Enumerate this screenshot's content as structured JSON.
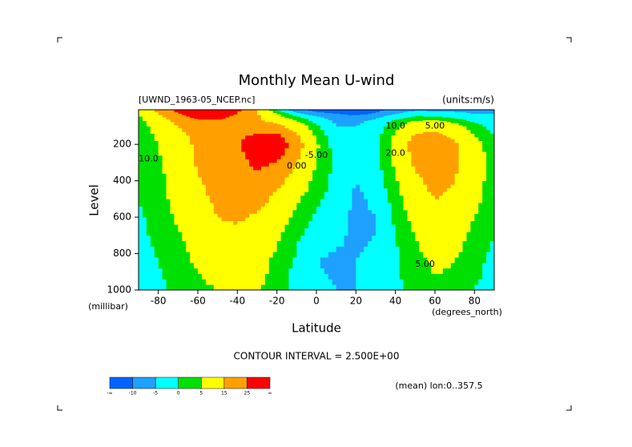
{
  "chart_data": {
    "type": "contour",
    "title": "Monthly Mean U-wind",
    "subtitle": "[UWND_1963-05_NCEP.nc]",
    "units": "(units:m/s)",
    "x_label": "Latitude",
    "x_units": "(degrees_north)",
    "y_label": "Level",
    "y_units": "(millibar)",
    "contour_interval": "CONTOUR INTERVAL = 2.500E+00",
    "footnote": "(mean) lon:0..357.5",
    "x": [
      -90,
      -80,
      -70,
      -60,
      -50,
      -40,
      -30,
      -20,
      -10,
      0,
      10,
      20,
      30,
      40,
      50,
      60,
      70,
      80,
      90
    ],
    "levels": [
      1000,
      850,
      700,
      600,
      500,
      400,
      300,
      200,
      150,
      100,
      70,
      50,
      30,
      10
    ],
    "values": [
      [
        -2,
        -1,
        1,
        3,
        5,
        7,
        6,
        2,
        -2,
        -4,
        -5,
        -5,
        -3,
        -1,
        2,
        4,
        3,
        0,
        -1
      ],
      [
        -2,
        0,
        3,
        6,
        9,
        10,
        8,
        3,
        -1,
        -5,
        -6,
        -5,
        -3,
        -1,
        3,
        6,
        5,
        1,
        -1
      ],
      [
        -1,
        1,
        4,
        8,
        12,
        13,
        11,
        6,
        1,
        -3,
        -4,
        -6,
        -5,
        0,
        5,
        9,
        8,
        3,
        0
      ],
      [
        -1,
        2,
        6,
        10,
        15,
        16,
        14,
        9,
        3,
        -1,
        -3,
        -6,
        -5,
        1,
        7,
        12,
        10,
        5,
        1
      ],
      [
        0,
        3,
        7,
        12,
        17,
        18,
        18,
        13,
        6,
        1,
        -2,
        -6,
        -4,
        2,
        10,
        15,
        13,
        7,
        2
      ],
      [
        0,
        3,
        8,
        14,
        19,
        20,
        22,
        18,
        10,
        3,
        -2,
        -5,
        -3,
        4,
        13,
        18,
        15,
        8,
        2
      ],
      [
        0,
        4,
        9,
        16,
        21,
        22,
        27,
        25,
        15,
        5,
        -1,
        -4,
        -2,
        6,
        17,
        21,
        17,
        9,
        2
      ],
      [
        1,
        5,
        10,
        17,
        22,
        24,
        30,
        32,
        20,
        6,
        -3,
        -4,
        -1,
        7,
        20,
        22,
        17,
        8,
        1
      ],
      [
        1,
        6,
        12,
        18,
        22,
        24,
        26,
        28,
        16,
        4,
        -4,
        -4,
        -2,
        6,
        16,
        18,
        13,
        5,
        0
      ],
      [
        2,
        8,
        15,
        20,
        22,
        22,
        20,
        18,
        10,
        1,
        -5,
        -5,
        -3,
        3,
        10,
        12,
        8,
        2,
        -2
      ],
      [
        3,
        10,
        18,
        23,
        24,
        22,
        17,
        12,
        5,
        -2,
        -6,
        -6,
        -4,
        1,
        5,
        6,
        3,
        -1,
        -3
      ],
      [
        4,
        12,
        22,
        27,
        27,
        23,
        16,
        8,
        1,
        -4,
        -7,
        -8,
        -6,
        -2,
        1,
        1,
        -1,
        -3,
        -4
      ],
      [
        5,
        15,
        24,
        30,
        30,
        25,
        16,
        5,
        -4,
        -8,
        -10,
        -12,
        -9,
        -5,
        -2,
        -3,
        -4,
        -5,
        -5
      ],
      [
        6,
        18,
        28,
        34,
        33,
        27,
        14,
        0,
        -8,
        -12,
        -14,
        -15,
        -12,
        -8,
        -6,
        -6,
        -6,
        -6,
        -6
      ]
    ],
    "xlim": [
      -90,
      90
    ],
    "ylim": [
      1000,
      10
    ],
    "xticks": [
      -80,
      -60,
      -40,
      -20,
      0,
      20,
      40,
      60,
      80
    ],
    "yticks": [
      200,
      400,
      600,
      800,
      1000
    ],
    "colorbar": {
      "colors": [
        "#0064ff",
        "#1ea0ff",
        "#00ffff",
        "#00e000",
        "#ffff00",
        "#ffa000",
        "#ff0000"
      ],
      "ticks": [
        {
          "value": null,
          "label": "-∞"
        },
        -10,
        -5,
        0,
        5,
        15,
        25,
        {
          "value": null,
          "label": "∞"
        }
      ]
    },
    "contour_labels": [
      {
        "text": "10.0",
        "x": 40,
        "y": 100
      },
      {
        "text": "5.00",
        "x": 60,
        "y": 100
      },
      {
        "text": "20.0",
        "x": 40,
        "y": 250
      },
      {
        "text": "5.00",
        "x": 55,
        "y": 860
      },
      {
        "text": "10.0",
        "x": -85,
        "y": 280
      },
      {
        "text": "0.00",
        "x": -10,
        "y": 320
      },
      {
        "text": "-5.00",
        "x": 0,
        "y": 260
      }
    ]
  }
}
